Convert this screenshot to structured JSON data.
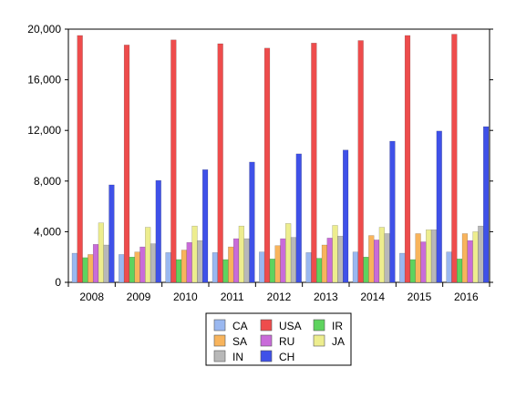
{
  "chart_data": {
    "type": "bar",
    "title": "",
    "xlabel": "",
    "ylabel": "",
    "categories": [
      "2008",
      "2009",
      "2010",
      "2011",
      "2012",
      "2013",
      "2014",
      "2015",
      "2016"
    ],
    "ylim": [
      0,
      21000
    ],
    "yticks": [
      0,
      4000,
      8000,
      12000,
      16000,
      20000
    ],
    "ytick_labels": [
      "0",
      "4,000",
      "8,000",
      "12,000",
      "16,000",
      "20,000"
    ],
    "grid": false,
    "legend_position": "bottom-center",
    "series": [
      {
        "name": "CA",
        "color": "#9ab8f0",
        "values": [
          2300,
          2200,
          2350,
          2350,
          2400,
          2350,
          2400,
          2300,
          2400
        ]
      },
      {
        "name": "USA",
        "color": "#ee4c4c",
        "values": [
          19500,
          18750,
          19150,
          18850,
          18500,
          18900,
          19100,
          19500,
          19600
        ]
      },
      {
        "name": "IR",
        "color": "#5ed35e",
        "values": [
          1950,
          2000,
          1800,
          1800,
          1850,
          1900,
          2000,
          1800,
          1850
        ]
      },
      {
        "name": "SA",
        "color": "#f8b45c",
        "values": [
          2200,
          2400,
          2550,
          2800,
          2900,
          2950,
          3700,
          3850,
          3850
        ]
      },
      {
        "name": "RU",
        "color": "#c96bd9",
        "values": [
          3000,
          2800,
          3150,
          3450,
          3450,
          3500,
          3350,
          3200,
          3300
        ]
      },
      {
        "name": "JA",
        "color": "#eded8e",
        "values": [
          4700,
          4350,
          4450,
          4450,
          4650,
          4500,
          4350,
          4150,
          4000
        ]
      },
      {
        "name": "IN",
        "color": "#b8b8b8",
        "values": [
          2950,
          3050,
          3300,
          3450,
          3550,
          3650,
          3850,
          4150,
          4450
        ]
      },
      {
        "name": "CH",
        "color": "#3f51e8",
        "values": [
          7700,
          8050,
          8900,
          9500,
          10150,
          10450,
          11150,
          11950,
          12300
        ]
      }
    ]
  }
}
